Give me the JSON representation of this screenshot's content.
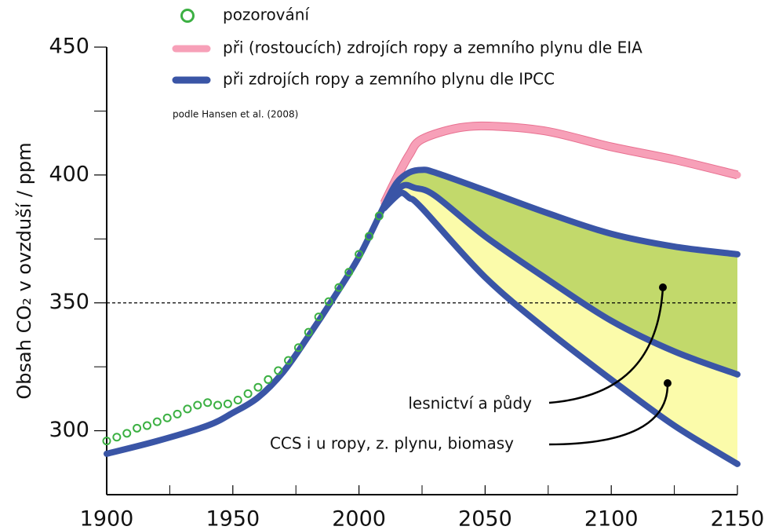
{
  "chart_data": {
    "type": "line",
    "ylabel": "Obsah CO₂ v ovzduší / ppm",
    "source": "podle Hansen et al. (2008)",
    "xlim": [
      1900,
      2150
    ],
    "xticks": [
      1900,
      1950,
      2000,
      2050,
      2100,
      2150
    ],
    "xminor": [
      1925,
      1975,
      2025,
      2075,
      2125
    ],
    "ylim": [
      275,
      450
    ],
    "yticks": [
      300,
      350,
      400,
      450
    ],
    "yminor": [
      325,
      375,
      425
    ],
    "hline": 350,
    "series": [
      {
        "name": "pozorování",
        "color": "#3cb043",
        "marker": "circle",
        "x": [
          1900,
          1904,
          1908,
          1912,
          1916,
          1920,
          1924,
          1928,
          1932,
          1936,
          1940,
          1944,
          1948,
          1952,
          1956,
          1960,
          1964,
          1968,
          1972,
          1976,
          1980,
          1984,
          1988,
          1992,
          1996,
          2000,
          2004,
          2008
        ],
        "values": [
          296,
          297.5,
          299,
          301,
          302,
          303.5,
          305,
          306.5,
          308.5,
          310,
          311,
          310,
          310.5,
          312,
          314.5,
          317,
          320,
          323.5,
          327.5,
          332.5,
          338.5,
          344.5,
          350.5,
          356,
          362,
          369,
          376,
          384
        ]
      },
      {
        "name": "při (rostoucích) zdrojích ropy a zemního plynu dle EIA",
        "color": "#f7a0b8",
        "x": [
          2010,
          2015,
          2020,
          2025,
          2040,
          2055,
          2075,
          2100,
          2125,
          2150
        ],
        "values": [
          389,
          399,
          408,
          414,
          418.5,
          419,
          417,
          411,
          406,
          400
        ]
      },
      {
        "name": "při zdrojích ropy a zemního plynu dle IPCC",
        "color": "#3a55a6",
        "x": [
          1900,
          1920,
          1940,
          1950,
          1960,
          1970,
          1980,
          1990,
          2000,
          2010,
          2015,
          2020,
          2025,
          2030,
          2050,
          2075,
          2100,
          2125,
          2150
        ],
        "values": [
          291,
          296,
          302,
          307,
          313,
          323,
          337,
          352,
          368,
          388,
          397,
          401,
          402,
          401,
          394,
          385,
          377,
          372,
          369
        ]
      },
      {
        "color": "#3a55a6",
        "x": [
          2010,
          2014,
          2018,
          2022,
          2030,
          2050,
          2075,
          2100,
          2125,
          2150
        ],
        "values": [
          388,
          393,
          396,
          395,
          392,
          376,
          359,
          343,
          331,
          322
        ]
      },
      {
        "color": "#3a55a6",
        "x": [
          2010,
          2014,
          2017,
          2020,
          2025,
          2050,
          2075,
          2100,
          2125,
          2150
        ],
        "values": [
          387,
          391,
          393,
          391,
          387,
          360,
          339,
          320,
          302,
          287
        ]
      }
    ],
    "bands": [
      {
        "between": [
          2,
          3
        ],
        "color": "#c2d96b"
      },
      {
        "between": [
          3,
          4
        ],
        "color": "#fbfbaa"
      }
    ],
    "annotations": [
      "lesnictví a půdy",
      "CCS i u ropy, z. plynu, biomasy"
    ]
  }
}
